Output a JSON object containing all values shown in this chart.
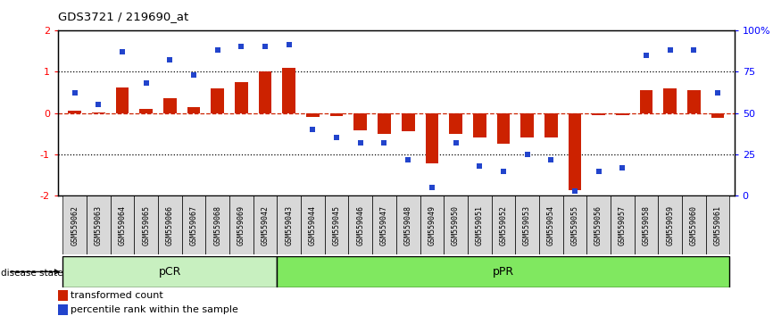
{
  "title": "GDS3721 / 219690_at",
  "samples": [
    "GSM559062",
    "GSM559063",
    "GSM559064",
    "GSM559065",
    "GSM559066",
    "GSM559067",
    "GSM559068",
    "GSM559069",
    "GSM559042",
    "GSM559043",
    "GSM559044",
    "GSM559045",
    "GSM559046",
    "GSM559047",
    "GSM559048",
    "GSM559049",
    "GSM559050",
    "GSM559051",
    "GSM559052",
    "GSM559053",
    "GSM559054",
    "GSM559055",
    "GSM559056",
    "GSM559057",
    "GSM559058",
    "GSM559059",
    "GSM559060",
    "GSM559061"
  ],
  "bar_values": [
    0.05,
    0.02,
    0.62,
    0.1,
    0.35,
    0.15,
    0.6,
    0.75,
    1.0,
    1.08,
    -0.1,
    -0.08,
    -0.42,
    -0.5,
    -0.45,
    -1.22,
    -0.5,
    -0.58,
    -0.75,
    -0.6,
    -0.58,
    -1.85,
    -0.05,
    -0.05,
    0.55,
    0.6,
    0.55,
    -0.12
  ],
  "dot_values_pct": [
    62,
    55,
    87,
    68,
    82,
    73,
    88,
    90,
    90,
    91,
    40,
    35,
    32,
    32,
    22,
    5,
    32,
    18,
    15,
    25,
    22,
    3,
    15,
    17,
    85,
    88,
    88,
    62
  ],
  "pcr_count": 9,
  "bar_color": "#cc2200",
  "dot_color": "#2244cc",
  "ylim_left": [
    -2,
    2
  ],
  "yticks_left": [
    -2,
    -1,
    0,
    1,
    2
  ],
  "yticks_right_pct": [
    0,
    25,
    50,
    75,
    100
  ],
  "legend_bar_label": "transformed count",
  "legend_dot_label": "percentile rank within the sample",
  "disease_state_label": "disease state",
  "pcr_label": "pCR",
  "ppr_label": "pPR",
  "pcr_color": "#c8f0c0",
  "ppr_color": "#80e860"
}
